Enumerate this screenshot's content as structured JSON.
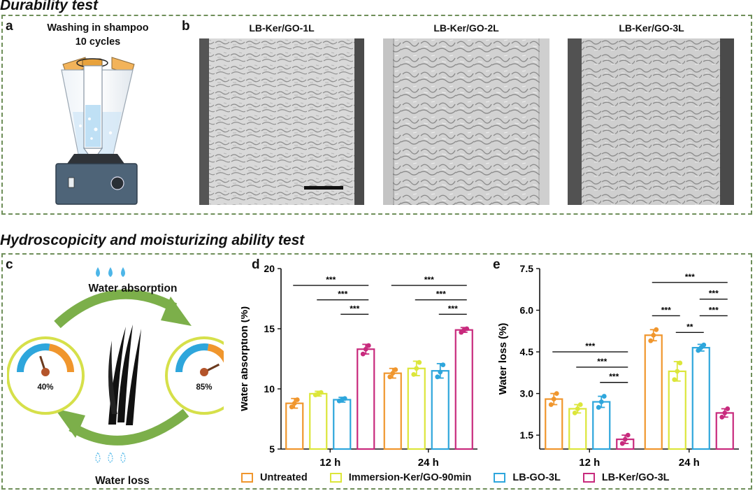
{
  "sections": {
    "durability_title": "Durability test",
    "hydro_title": "Hydroscopicity and moisturizing ability test"
  },
  "panels": {
    "a": {
      "letter": "a",
      "line1": "Washing in shampoo",
      "line2": "10 cycles"
    },
    "b": {
      "letter": "b",
      "labels": [
        "LB-Ker/GO-1L",
        "LB-Ker/GO-2L",
        "LB-Ker/GO-3L"
      ]
    },
    "c": {
      "letter": "c",
      "water_absorption": "Water absorption",
      "water_loss": "Water loss",
      "gauge_left": "40%",
      "gauge_right": "85%",
      "gauge_left_value": 40,
      "gauge_right_value": 85
    },
    "d": {
      "letter": "d"
    },
    "e": {
      "letter": "e"
    }
  },
  "legend": [
    {
      "label": "Untreated",
      "color": "#f0962d"
    },
    {
      "label": "Immersion-Ker/GO-90min",
      "color": "#dce63a"
    },
    {
      "label": "LB-GO-3L",
      "color": "#2ea6dc"
    },
    {
      "label": "LB-Ker/GO-3L",
      "color": "#c82a7d"
    }
  ],
  "chart_data": [
    {
      "id": "d",
      "type": "bar",
      "ylabel": "Water absorption (%)",
      "xlabel": "",
      "ylim": [
        5,
        20
      ],
      "yticks": [
        5,
        10,
        15,
        20
      ],
      "ytick_labels": [
        "5",
        "10",
        "15",
        "20"
      ],
      "categories": [
        "12 h",
        "24 h"
      ],
      "series": [
        {
          "name": "Untreated",
          "values": [
            8.8,
            11.3
          ],
          "errors": [
            0.4,
            0.4
          ],
          "points": [
            [
              8.5,
              8.8,
              9.1
            ],
            [
              11.0,
              11.3,
              11.6
            ]
          ]
        },
        {
          "name": "Immersion-Ker/GO-90min",
          "values": [
            9.6,
            11.7
          ],
          "errors": [
            0.2,
            0.6
          ],
          "points": [
            [
              9.5,
              9.6,
              9.7
            ],
            [
              11.2,
              11.7,
              12.2
            ]
          ]
        },
        {
          "name": "LB-GO-3L",
          "values": [
            9.1,
            11.5
          ],
          "errors": [
            0.2,
            0.6
          ],
          "points": [
            [
              9.0,
              9.1,
              9.2
            ],
            [
              11.0,
              11.4,
              12.0
            ]
          ]
        },
        {
          "name": "LB-Ker/GO-3L",
          "values": [
            13.3,
            14.9
          ],
          "errors": [
            0.4,
            0.2
          ],
          "points": [
            [
              12.9,
              13.3,
              13.6
            ],
            [
              14.7,
              14.9,
              15.0
            ]
          ]
        }
      ],
      "significance": [
        {
          "category": 0,
          "from": 0,
          "to": 3,
          "y": 18.6,
          "label": "***"
        },
        {
          "category": 0,
          "from": 1,
          "to": 3,
          "y": 17.4,
          "label": "***"
        },
        {
          "category": 0,
          "from": 2,
          "to": 3,
          "y": 16.2,
          "label": "***"
        },
        {
          "category": 1,
          "from": 0,
          "to": 3,
          "y": 18.6,
          "label": "***"
        },
        {
          "category": 1,
          "from": 1,
          "to": 3,
          "y": 17.4,
          "label": "***"
        },
        {
          "category": 1,
          "from": 2,
          "to": 3,
          "y": 16.2,
          "label": "***"
        }
      ]
    },
    {
      "id": "e",
      "type": "bar",
      "ylabel": "Water loss (%)",
      "xlabel": "",
      "ylim": [
        1.0,
        7.5
      ],
      "yticks": [
        1.5,
        3.0,
        4.5,
        6.0,
        7.5
      ],
      "ytick_labels": [
        "1.5",
        "3.0",
        "4.5",
        "6.0",
        "7.5"
      ],
      "categories": [
        "12 h",
        "24 h"
      ],
      "series": [
        {
          "name": "Untreated",
          "values": [
            2.8,
            5.1
          ],
          "errors": [
            0.2,
            0.2
          ],
          "points": [
            [
              2.6,
              2.8,
              3.0
            ],
            [
              4.9,
              5.1,
              5.3
            ]
          ]
        },
        {
          "name": "Immersion-Ker/GO-90min",
          "values": [
            2.45,
            3.8
          ],
          "errors": [
            0.15,
            0.35
          ],
          "points": [
            [
              2.3,
              2.45,
              2.6
            ],
            [
              3.5,
              3.8,
              4.1
            ]
          ]
        },
        {
          "name": "LB-GO-3L",
          "values": [
            2.7,
            4.65
          ],
          "errors": [
            0.2,
            0.12
          ],
          "points": [
            [
              2.5,
              2.7,
              2.9
            ],
            [
              4.55,
              4.65,
              4.75
            ]
          ]
        },
        {
          "name": "LB-Ker/GO-3L",
          "values": [
            1.35,
            2.3
          ],
          "errors": [
            0.15,
            0.15
          ],
          "points": [
            [
              1.2,
              1.35,
              1.5
            ],
            [
              2.15,
              2.3,
              2.45
            ]
          ]
        }
      ],
      "significance": [
        {
          "category": 0,
          "from": 0,
          "to": 3,
          "y": 4.5,
          "label": "***"
        },
        {
          "category": 0,
          "from": 1,
          "to": 3,
          "y": 3.95,
          "label": "***"
        },
        {
          "category": 0,
          "from": 2,
          "to": 3,
          "y": 3.4,
          "label": "***"
        },
        {
          "category": 1,
          "from": 0,
          "to": 3,
          "y": 7.0,
          "label": "***"
        },
        {
          "category": 1,
          "from": 2,
          "to": 3,
          "y": 6.4,
          "label": "***"
        },
        {
          "category": 1,
          "from": 0,
          "to": 1,
          "y": 5.8,
          "label": "***"
        },
        {
          "category": 1,
          "from": 2,
          "to": 3,
          "y": 5.8,
          "label": "***"
        },
        {
          "category": 1,
          "from": 1,
          "to": 2,
          "y": 5.2,
          "label": "**"
        }
      ]
    }
  ]
}
